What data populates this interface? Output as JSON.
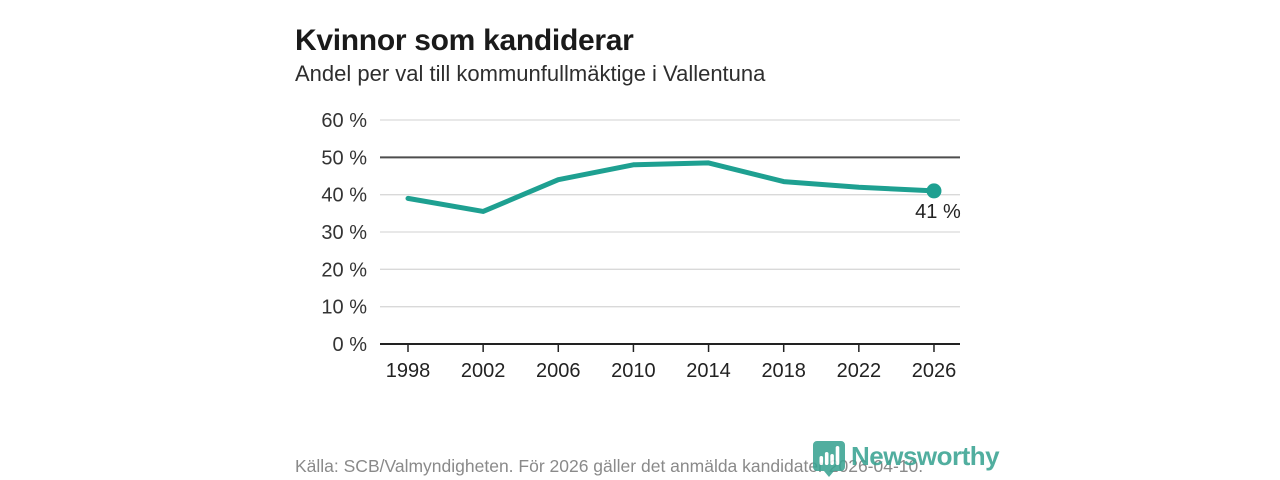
{
  "header": {
    "title": "Kvinnor som kandiderar",
    "subtitle": "Andel per val till kommunfullmäktige i Vallentuna"
  },
  "chart_data": {
    "type": "line",
    "x": [
      1998,
      2002,
      2006,
      2010,
      2014,
      2018,
      2022,
      2026
    ],
    "x_tick_labels": [
      "1998",
      "2002",
      "2006",
      "2010",
      "2014",
      "2018",
      "2022",
      "2026"
    ],
    "values": [
      39,
      35.5,
      44,
      48,
      48.5,
      43.5,
      42,
      41
    ],
    "y_ticks": [
      0,
      10,
      20,
      30,
      40,
      50,
      60
    ],
    "y_tick_labels": [
      "0 %",
      "10 %",
      "20 %",
      "30 %",
      "40 %",
      "50 %",
      "60 %"
    ],
    "ylim": [
      0,
      60
    ],
    "reference_line": 50,
    "end_label": "41 %",
    "title": "Kvinnor som kandiderar",
    "subtitle": "Andel per val till kommunfullmäktige i Vallentuna",
    "xlabel": "",
    "ylabel": "",
    "grid": true,
    "legend": "none",
    "line_color": "#1ea091",
    "marker_color": "#1ea091",
    "gridline_color": "#d9d9d9",
    "reference_line_color": "#4d4d4d",
    "axis_color": "#222222"
  },
  "footer": {
    "source": "Källa: SCB/Valmyndigheten. För 2026 gäller det anmälda kandidater 2026-04-10."
  },
  "branding": {
    "logo_text": "Newsworthy",
    "logo_color": "#3aa392",
    "logo_icon": "bar-chart-pin-icon"
  }
}
